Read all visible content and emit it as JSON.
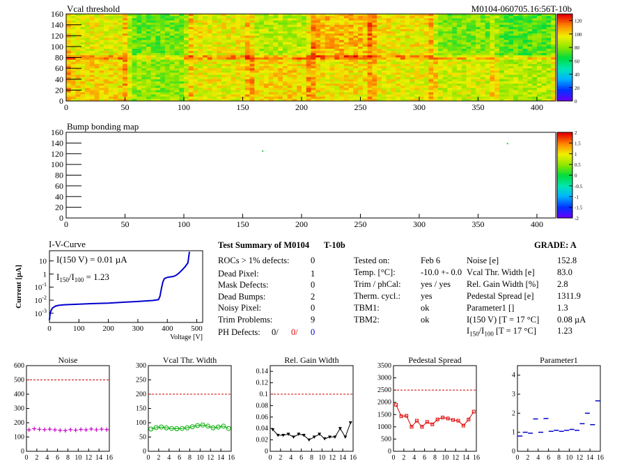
{
  "chart_data": [
    {
      "type": "heatmap",
      "title": "Vcal threshold",
      "run_label": "M0104-060705.16:56T-10b",
      "xlim": [
        0,
        416
      ],
      "ylim": [
        0,
        160
      ],
      "x_ticks": [
        "0",
        "50",
        "100",
        "150",
        "200",
        "250",
        "300",
        "350",
        "400"
      ],
      "y_ticks": [
        "0",
        "20",
        "40",
        "60",
        "80",
        "100",
        "120",
        "140",
        "160"
      ],
      "z_ticks": [
        "0",
        "20",
        "40",
        "60",
        "80",
        "100",
        "120"
      ],
      "zlim": [
        0,
        130
      ],
      "roc_mean_top": [
        95,
        78,
        96,
        88,
        105,
        98,
        80,
        74
      ],
      "roc_mean_bottom": [
        100,
        82,
        96,
        100,
        99,
        96,
        92,
        88
      ]
    },
    {
      "type": "heatmap",
      "title": "Bump bonding map",
      "xlim": [
        0,
        416
      ],
      "ylim": [
        0,
        160
      ],
      "x_ticks": [
        "0",
        "50",
        "100",
        "150",
        "200",
        "250",
        "300",
        "350",
        "400"
      ],
      "y_ticks": [
        "0",
        "20",
        "40",
        "60",
        "80",
        "100",
        "120",
        "140",
        "160"
      ],
      "z_ticks": [
        "-2",
        "-1.5",
        "-1",
        "-0.5",
        "0",
        "0.5",
        "1",
        "1.5",
        "2"
      ],
      "zlim": [
        -2,
        2
      ],
      "points": [
        [
          167,
          125
        ],
        [
          375,
          139
        ]
      ]
    },
    {
      "type": "line",
      "title": "I-V-Curve",
      "xlabel": "Voltage [V]",
      "ylabel": "Current [µA]",
      "log_y": true,
      "xlim": [
        0,
        520
      ],
      "ylim": [
        0.0002,
        60
      ],
      "x_ticks": [
        "0",
        "100",
        "200",
        "300",
        "400",
        "500"
      ],
      "y_ticks": [
        {
          "m": "10",
          "e": "-3"
        },
        {
          "m": "10",
          "e": "-2"
        },
        {
          "m": "10",
          "e": "-1"
        },
        {
          "m": "1",
          "e": ""
        },
        {
          "m": "10",
          "e": ""
        }
      ],
      "annot1": "I(150 V) = 0.01 µA",
      "annot2_a": "I",
      "annot2_s1": "150",
      "annot2_b": "/I",
      "annot2_s2": "100",
      "annot2_c": "=  1.23",
      "x": [
        0,
        2,
        5,
        10,
        20,
        30,
        50,
        100,
        150,
        200,
        250,
        300,
        350,
        370,
        375,
        380,
        385,
        390,
        400,
        410,
        420,
        430,
        440,
        450,
        460,
        470,
        475
      ],
      "y": [
        0.0003,
        0.0008,
        0.0015,
        0.0025,
        0.0035,
        0.004,
        0.0045,
        0.005,
        0.0055,
        0.006,
        0.007,
        0.008,
        0.0095,
        0.011,
        0.02,
        0.08,
        0.25,
        0.45,
        0.55,
        0.6,
        0.65,
        0.8,
        1.2,
        2.0,
        3.5,
        7,
        50
      ]
    },
    {
      "type": "scatter",
      "title": "Noise",
      "xlim": [
        0,
        16
      ],
      "ylim": [
        0,
        600
      ],
      "ref": 500,
      "x_ticks": [
        "0",
        "2",
        "4",
        "6",
        "8",
        "10",
        "12",
        "14",
        "16"
      ],
      "y_ticks": [
        "0",
        "100",
        "200",
        "300",
        "400",
        "500",
        "600"
      ],
      "x": [
        0,
        1,
        2,
        3,
        4,
        5,
        6,
        7,
        8,
        9,
        10,
        11,
        12,
        13,
        14,
        15
      ],
      "values": [
        150,
        158,
        154,
        152,
        155,
        150,
        147,
        145,
        152,
        148,
        153,
        150,
        156,
        151,
        155,
        152
      ],
      "color": "#cc00cc",
      "marker": "plus"
    },
    {
      "type": "line",
      "title": "Vcal Thr. Width",
      "xlim": [
        0,
        16
      ],
      "ylim": [
        0,
        300
      ],
      "ref": 200,
      "x_ticks": [
        "0",
        "2",
        "4",
        "6",
        "8",
        "10",
        "12",
        "14",
        "16"
      ],
      "y_ticks": [
        "0",
        "50",
        "100",
        "150",
        "200",
        "250",
        "300"
      ],
      "x": [
        0,
        1,
        2,
        3,
        4,
        5,
        6,
        7,
        8,
        9,
        10,
        11,
        12,
        13,
        14,
        15
      ],
      "values": [
        78,
        83,
        85,
        82,
        80,
        79,
        80,
        82,
        86,
        90,
        92,
        88,
        82,
        85,
        88,
        80
      ],
      "color": "#00aa00",
      "marker": "circle"
    },
    {
      "type": "line",
      "title": "Rel. Gain Width",
      "xlim": [
        0,
        16
      ],
      "ylim": [
        0,
        0.15
      ],
      "ref": 0.1,
      "x_ticks": [
        "0",
        "2",
        "4",
        "6",
        "8",
        "10",
        "12",
        "14",
        "16"
      ],
      "y_ticks": [
        "0",
        "0.02",
        "0.04",
        "0.06",
        "0.08",
        "0.1",
        "0.12",
        "0.14"
      ],
      "x": [
        0,
        1,
        2,
        3,
        4,
        5,
        6,
        7,
        8,
        9,
        10,
        11,
        12,
        13,
        14,
        15
      ],
      "values": [
        0.038,
        0.028,
        0.028,
        0.03,
        0.025,
        0.03,
        0.028,
        0.02,
        0.025,
        0.03,
        0.022,
        0.025,
        0.025,
        0.04,
        0.025,
        0.05
      ],
      "color": "#000000",
      "marker": "triangle"
    },
    {
      "type": "line",
      "title": "Pedestal Spread",
      "xlim": [
        0,
        16
      ],
      "ylim": [
        0,
        3500
      ],
      "ref": 2500,
      "x_ticks": [
        "0",
        "2",
        "4",
        "6",
        "8",
        "10",
        "12",
        "14",
        "16"
      ],
      "y_ticks": [
        "0",
        "500",
        "1000",
        "1500",
        "2000",
        "2500",
        "3000",
        "3500"
      ],
      "x": [
        0,
        1,
        2,
        3,
        4,
        5,
        6,
        7,
        8,
        9,
        10,
        11,
        12,
        13,
        14,
        15
      ],
      "values": [
        1900,
        1430,
        1450,
        1000,
        1250,
        1000,
        1200,
        1100,
        1300,
        1380,
        1340,
        1280,
        1250,
        1050,
        1300,
        1620
      ],
      "color": "#dd0000",
      "marker": "box"
    },
    {
      "type": "scatter",
      "title": "Parameter1",
      "xlim": [
        0,
        16
      ],
      "ylim": [
        0,
        4.5
      ],
      "x_ticks": [
        "0",
        "2",
        "4",
        "6",
        "8",
        "10",
        "12",
        "14",
        "16"
      ],
      "y_ticks": [
        "0",
        "1",
        "2",
        "3",
        "4"
      ],
      "x": [
        0,
        1,
        2,
        3,
        4,
        5,
        6,
        7,
        8,
        9,
        10,
        11,
        12,
        13,
        14,
        15
      ],
      "values": [
        0.8,
        1.0,
        0.95,
        1.7,
        1.0,
        1.72,
        1.05,
        1.1,
        1.05,
        1.1,
        1.15,
        1.1,
        1.45,
        2.0,
        1.4,
        2.65
      ],
      "color": "#0000cc",
      "marker": "dash"
    }
  ],
  "summary": {
    "title": "Test Summary of M0104",
    "tag": "T-10b",
    "grade": "GRADE:  A",
    "left": [
      {
        "label": "ROCs > 1% defects:",
        "value": "0"
      },
      {
        "label": "Dead Pixel:",
        "value": "1"
      },
      {
        "label": "Mask Defects:",
        "value": "0"
      },
      {
        "label": "Dead Bumps:",
        "value": "2"
      },
      {
        "label": "Noisy Pixel:",
        "value": "0"
      },
      {
        "label": "Trim Problems:",
        "value": "9"
      }
    ],
    "ph_label": "PH Defects:",
    "ph_vals": [
      "0/",
      "0/",
      "0"
    ],
    "mid": [
      {
        "label": "Tested on:",
        "value": "Feb 6"
      },
      {
        "label": "Temp. [°C]:",
        "value": "-10.0 +- 0.0"
      },
      {
        "label": "Trim / phCal:",
        "value": "yes / yes"
      },
      {
        "label": "Therm. cycl.:",
        "value": "yes"
      },
      {
        "label": "TBM1:",
        "value": "ok"
      },
      {
        "label": "TBM2:",
        "value": "ok"
      }
    ],
    "right": [
      {
        "label": "Noise [e]",
        "value": "152.8"
      },
      {
        "label": "Vcal Thr. Width [e]",
        "value": "83.0"
      },
      {
        "label": "Rel. Gain Width [%]",
        "value": "2.8"
      },
      {
        "label": "Pedestal Spread [e]",
        "value": "1311.9"
      },
      {
        "label": "Parameter1 []",
        "value": "1.3"
      },
      {
        "label": "I(150 V) [T = 17 °C]",
        "value": "0.08 µA"
      }
    ],
    "ratio_label_a": "I",
    "ratio_s1": "150",
    "ratio_label_b": "/I",
    "ratio_s2": "100",
    "ratio_label_c": " [T = 17 °C]",
    "ratio_value": "1.23"
  }
}
